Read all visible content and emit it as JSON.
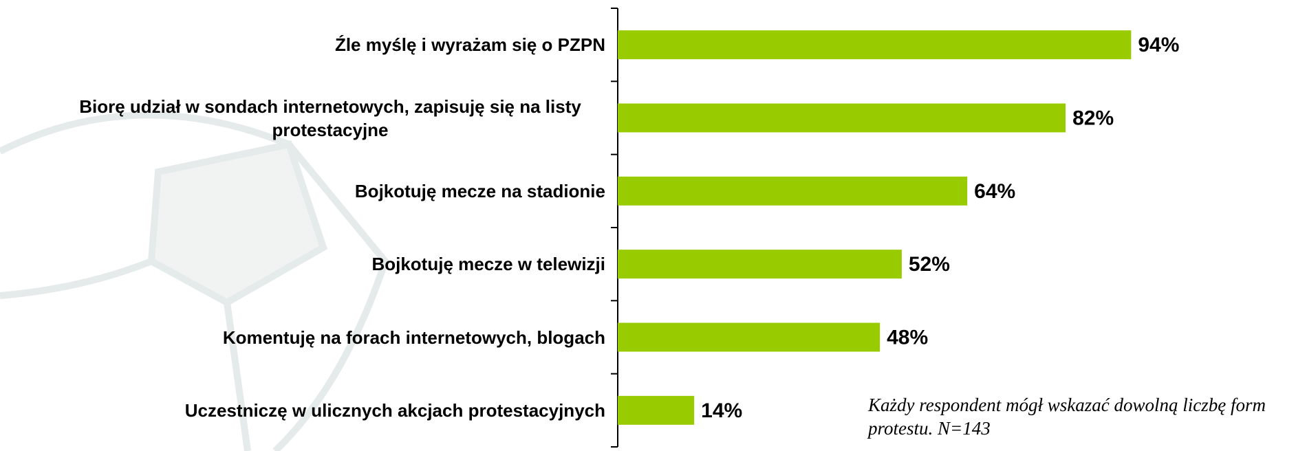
{
  "chart_data": {
    "type": "bar",
    "orientation": "horizontal",
    "categories": [
      "Źle myślę i wyrażam się o PZPN",
      "Biorę udział w sondach internetowych, zapisuję się na listy protestacyjne",
      "Bojkotuję mecze na stadionie",
      "Bojkotuję mecze w telewizji",
      "Komentuję na forach internetowych, blogach",
      "Uczestniczę w ulicznych akcjach protestacyjnych"
    ],
    "values": [
      94,
      82,
      64,
      52,
      48,
      14
    ],
    "value_labels": [
      "94%",
      "82%",
      "64%",
      "52%",
      "48%",
      "14%"
    ],
    "color": "#99cc00",
    "xlim": [
      0,
      100
    ],
    "annotation": "Każdy respondent mógł wskazać dowolną liczbę form protestu. N=143"
  }
}
